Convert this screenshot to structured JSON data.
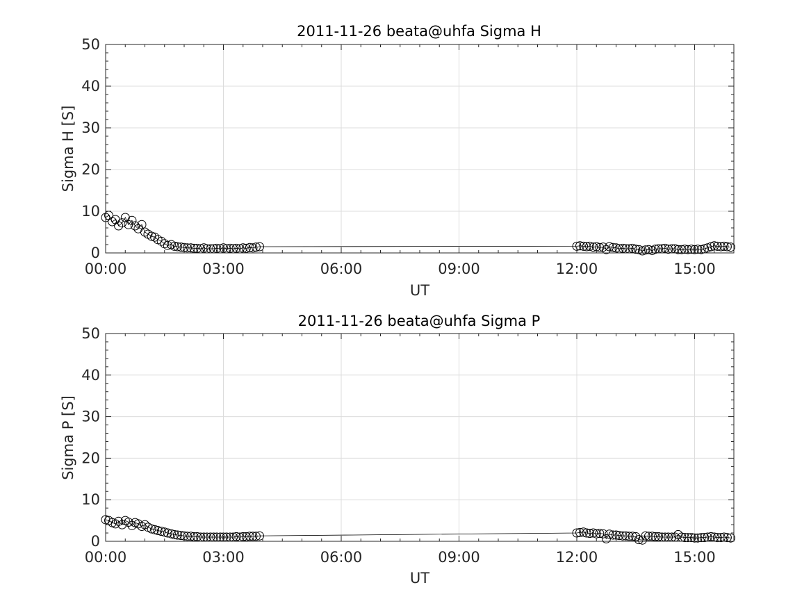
{
  "chart_data": [
    {
      "type": "scatter",
      "title": "2011-11-26  beata@uhfa Sigma H",
      "xlabel": "UT",
      "ylabel": "Sigma H [S]",
      "x_unit": "hours UT",
      "xlim": [
        0,
        16
      ],
      "ylim": [
        0,
        50
      ],
      "xticks": [
        0,
        3,
        6,
        9,
        12,
        15
      ],
      "xtick_labels": [
        "00:00",
        "03:00",
        "06:00",
        "09:00",
        "12:00",
        "15:00"
      ],
      "yticks": [
        0,
        10,
        20,
        30,
        40,
        50
      ],
      "ytick_labels": [
        "0",
        "10",
        "20",
        "30",
        "40",
        "50"
      ],
      "grid": true,
      "marker": "open-circle",
      "line_connects_points": true,
      "series": [
        {
          "x": [
            0.0,
            0.08,
            0.17,
            0.25,
            0.33,
            0.42,
            0.5,
            0.58,
            0.67,
            0.75,
            0.83,
            0.92,
            1.0,
            1.08,
            1.17,
            1.25,
            1.33,
            1.42,
            1.5,
            1.58,
            1.67,
            1.75,
            1.83,
            1.92,
            2.0,
            2.08,
            2.17,
            2.25,
            2.33,
            2.42,
            2.5,
            2.58,
            2.67,
            2.75,
            2.83,
            2.92,
            3.0,
            3.08,
            3.17,
            3.25,
            3.33,
            3.42,
            3.5,
            3.58,
            3.67,
            3.75,
            3.83,
            3.92,
            12.0,
            12.08,
            12.17,
            12.25,
            12.33,
            12.42,
            12.5,
            12.58,
            12.67,
            12.75,
            12.83,
            12.92,
            13.0,
            13.08,
            13.17,
            13.25,
            13.33,
            13.42,
            13.5,
            13.58,
            13.67,
            13.75,
            13.83,
            13.92,
            14.0,
            14.08,
            14.17,
            14.25,
            14.33,
            14.42,
            14.5,
            14.58,
            14.67,
            14.75,
            14.83,
            14.92,
            15.0,
            15.08,
            15.17,
            15.25,
            15.33,
            15.42,
            15.5,
            15.58,
            15.67,
            15.75,
            15.83,
            15.92
          ],
          "y": [
            8.5,
            9.0,
            7.5,
            8.0,
            6.5,
            7.2,
            8.5,
            6.8,
            7.8,
            6.5,
            5.8,
            6.8,
            5.0,
            4.5,
            4.0,
            3.8,
            3.2,
            2.8,
            2.2,
            1.8,
            2.0,
            1.6,
            1.5,
            1.4,
            1.3,
            1.2,
            1.2,
            1.1,
            1.1,
            1.0,
            1.2,
            1.0,
            1.0,
            1.0,
            1.1,
            1.0,
            1.2,
            1.0,
            1.1,
            1.0,
            1.1,
            1.0,
            1.2,
            1.1,
            1.3,
            1.2,
            1.4,
            1.5,
            1.6,
            1.7,
            1.6,
            1.5,
            1.6,
            1.4,
            1.5,
            1.3,
            1.4,
            0.8,
            1.5,
            1.3,
            1.2,
            1.0,
            1.1,
            1.0,
            1.0,
            1.1,
            0.9,
            0.8,
            0.5,
            0.7,
            0.8,
            0.6,
            0.9,
            1.0,
            1.0,
            1.1,
            0.9,
            1.0,
            1.0,
            0.8,
            0.8,
            0.9,
            0.8,
            0.9,
            0.8,
            0.9,
            0.8,
            1.0,
            1.2,
            1.5,
            1.7,
            1.6,
            1.5,
            1.6,
            1.5,
            1.4
          ]
        }
      ]
    },
    {
      "type": "scatter",
      "title": "2011-11-26  beata@uhfa Sigma P",
      "xlabel": "UT",
      "ylabel": "Sigma P [S]",
      "x_unit": "hours UT",
      "xlim": [
        0,
        16
      ],
      "ylim": [
        0,
        50
      ],
      "xticks": [
        0,
        3,
        6,
        9,
        12,
        15
      ],
      "xtick_labels": [
        "00:00",
        "03:00",
        "06:00",
        "09:00",
        "12:00",
        "15:00"
      ],
      "yticks": [
        0,
        10,
        20,
        30,
        40,
        50
      ],
      "ytick_labels": [
        "0",
        "10",
        "20",
        "30",
        "40",
        "50"
      ],
      "grid": true,
      "marker": "open-circle",
      "line_connects_points": true,
      "series": [
        {
          "x": [
            0.0,
            0.08,
            0.17,
            0.25,
            0.33,
            0.42,
            0.5,
            0.58,
            0.67,
            0.75,
            0.83,
            0.92,
            1.0,
            1.08,
            1.17,
            1.25,
            1.33,
            1.42,
            1.5,
            1.58,
            1.67,
            1.75,
            1.83,
            1.92,
            2.0,
            2.08,
            2.17,
            2.25,
            2.33,
            2.42,
            2.5,
            2.58,
            2.67,
            2.75,
            2.83,
            2.92,
            3.0,
            3.08,
            3.17,
            3.25,
            3.33,
            3.42,
            3.5,
            3.58,
            3.67,
            3.75,
            3.83,
            3.92,
            12.0,
            12.08,
            12.17,
            12.25,
            12.33,
            12.42,
            12.5,
            12.58,
            12.67,
            12.75,
            12.83,
            12.92,
            13.0,
            13.08,
            13.17,
            13.25,
            13.33,
            13.42,
            13.5,
            13.58,
            13.67,
            13.75,
            13.83,
            13.92,
            14.0,
            14.08,
            14.17,
            14.25,
            14.33,
            14.42,
            14.5,
            14.58,
            14.67,
            14.75,
            14.83,
            14.92,
            15.0,
            15.08,
            15.17,
            15.25,
            15.33,
            15.42,
            15.5,
            15.58,
            15.67,
            15.75,
            15.83,
            15.92
          ],
          "y": [
            5.2,
            5.0,
            4.5,
            4.2,
            4.8,
            4.0,
            5.0,
            4.6,
            3.8,
            4.5,
            4.2,
            3.6,
            4.0,
            3.4,
            3.0,
            2.8,
            2.6,
            2.4,
            2.2,
            2.0,
            1.8,
            1.6,
            1.5,
            1.4,
            1.3,
            1.2,
            1.2,
            1.1,
            1.1,
            1.0,
            1.0,
            1.0,
            1.0,
            1.0,
            1.0,
            1.0,
            1.0,
            1.0,
            1.0,
            1.0,
            1.1,
            1.0,
            1.1,
            1.1,
            1.2,
            1.2,
            1.2,
            1.3,
            2.0,
            2.1,
            2.2,
            2.0,
            1.9,
            2.0,
            1.8,
            1.9,
            1.8,
            0.6,
            1.7,
            1.5,
            1.5,
            1.4,
            1.3,
            1.3,
            1.2,
            1.2,
            1.1,
            0.4,
            0.3,
            1.3,
            1.2,
            1.2,
            1.1,
            1.1,
            1.0,
            1.0,
            1.0,
            1.0,
            1.0,
            1.6,
            1.0,
            0.9,
            0.9,
            0.9,
            0.8,
            0.8,
            0.9,
            0.9,
            1.0,
            1.1,
            1.0,
            0.9,
            0.9,
            1.0,
            0.9,
            0.8
          ]
        }
      ]
    }
  ]
}
